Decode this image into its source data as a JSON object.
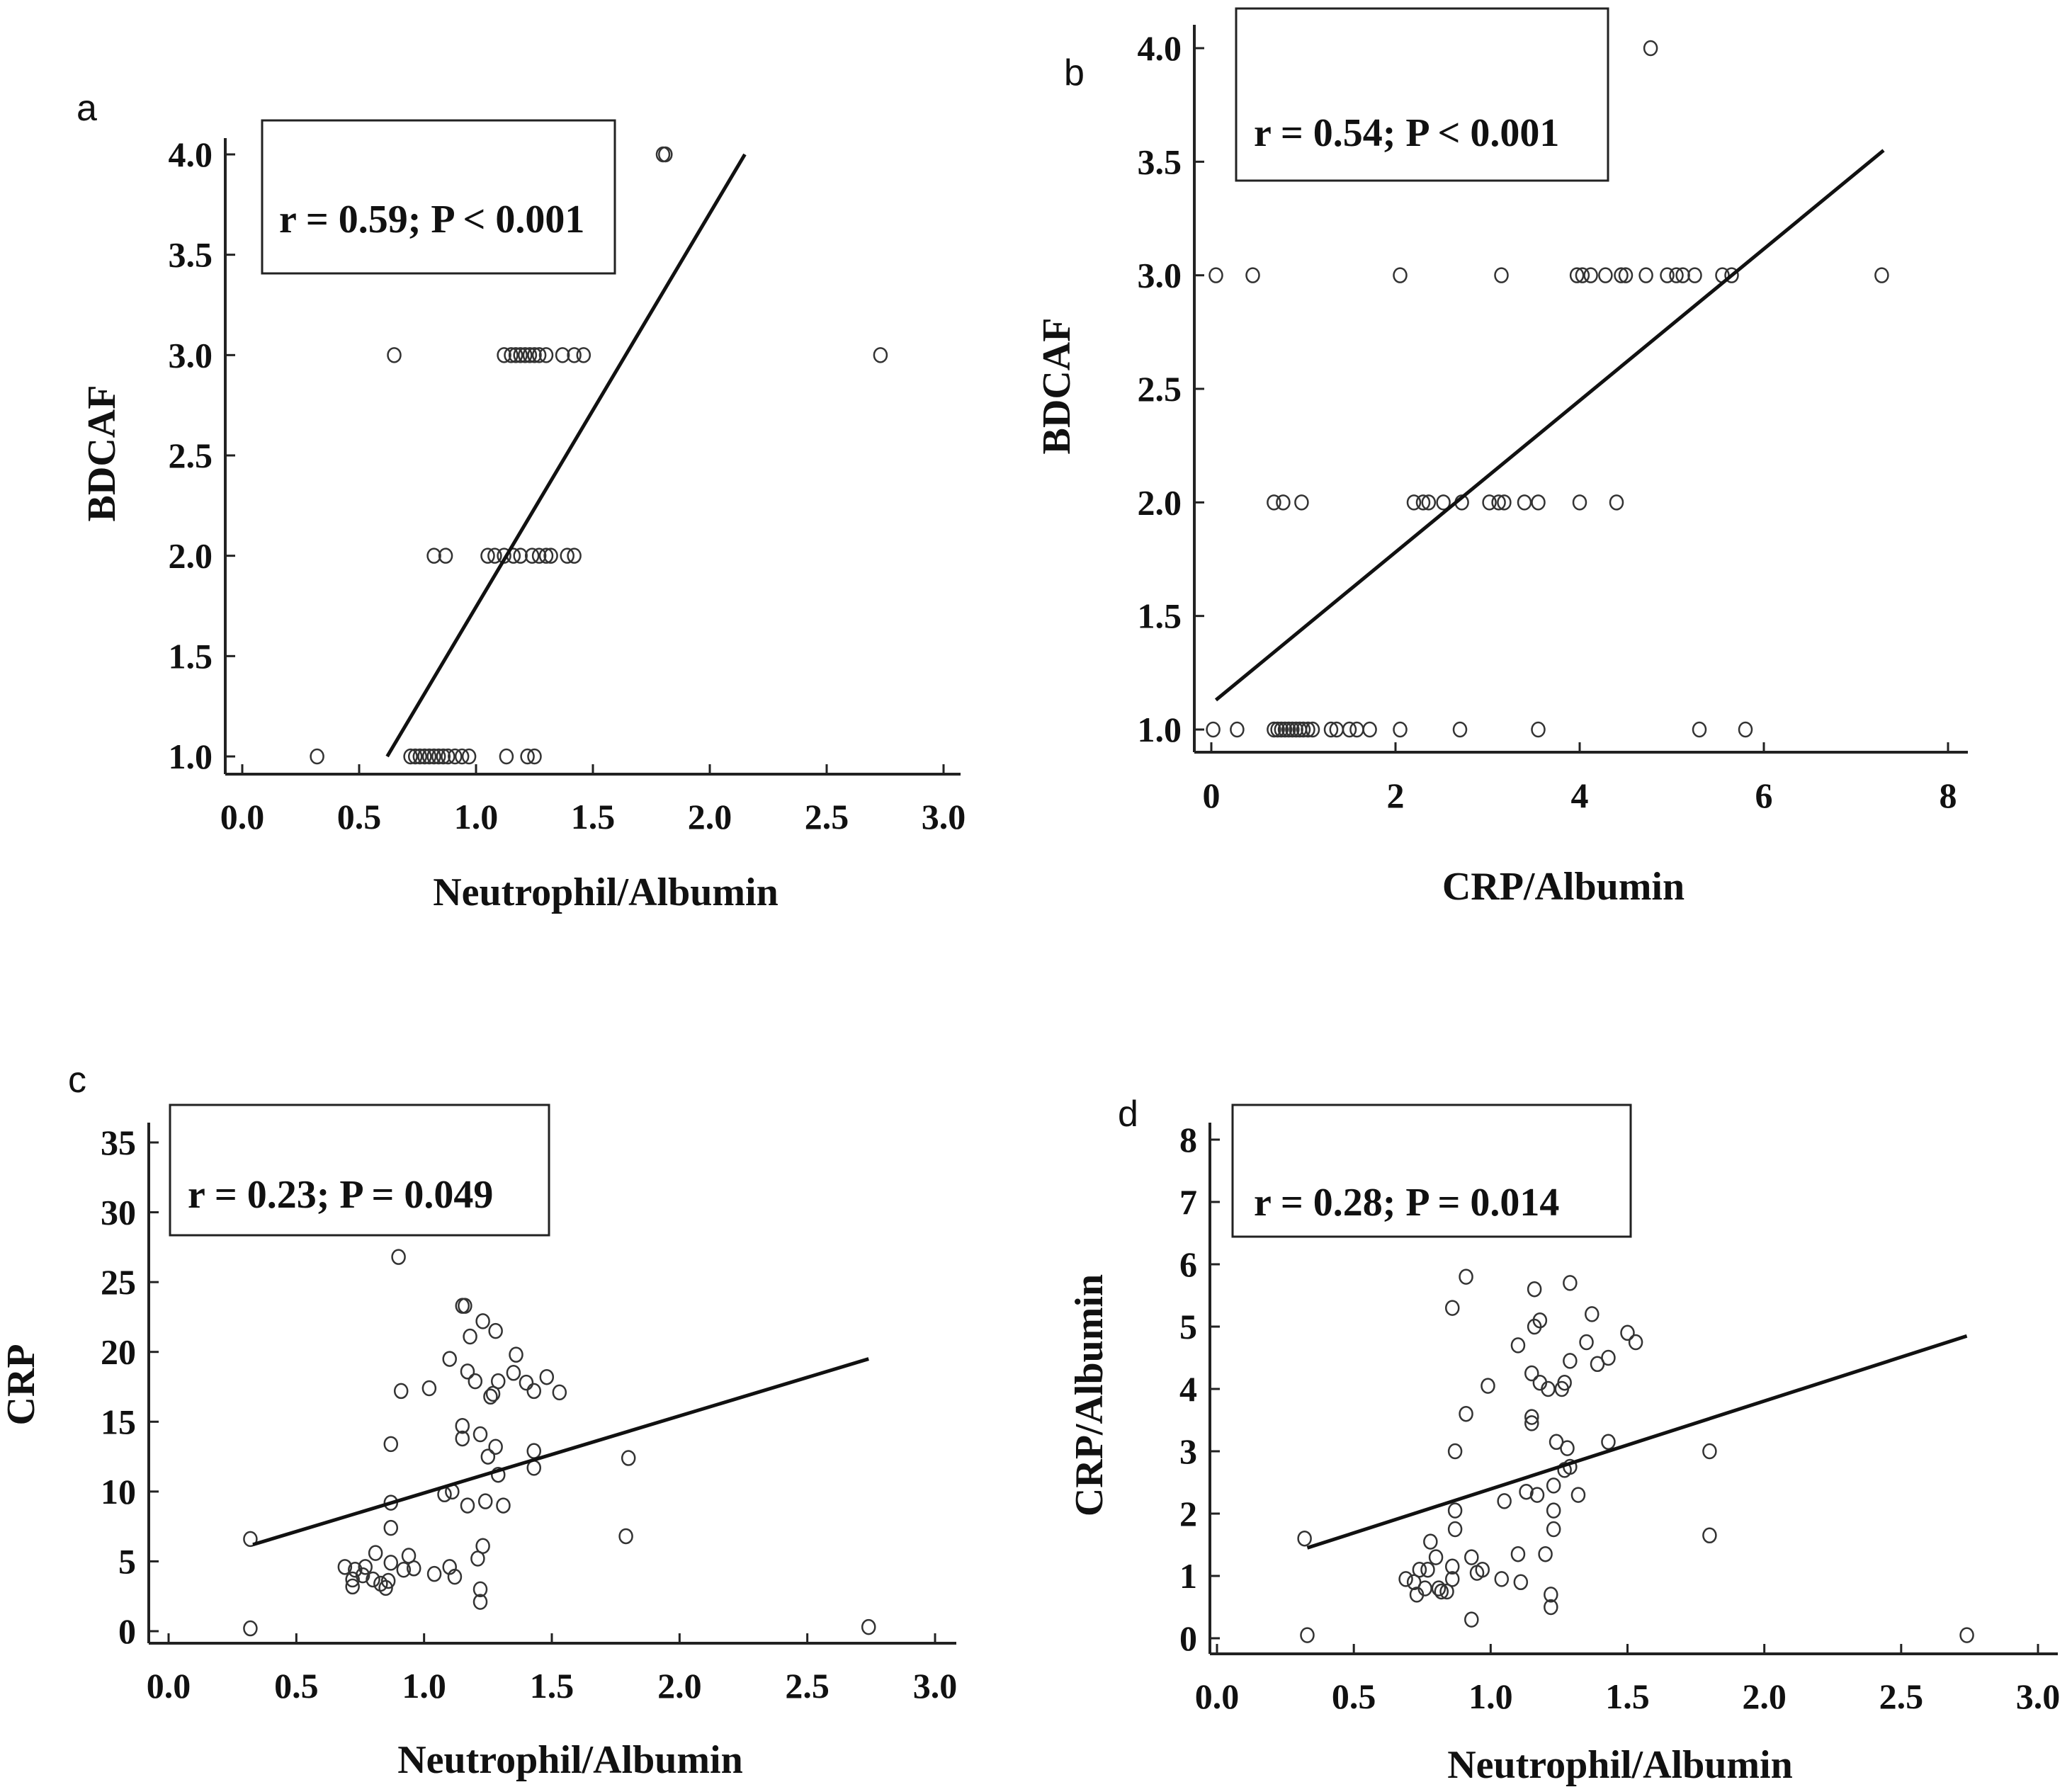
{
  "chart_data": [
    {
      "type": "scatter",
      "panel_label": "a",
      "xlabel": "Neutrophil/Albumin",
      "ylabel": "BDCAF",
      "annotation": "r = 0.59; P < 0.001",
      "x_ticks": [
        "0.0",
        "0.5",
        "1.0",
        "1.5",
        "2.0",
        "2.5",
        "3.0"
      ],
      "y_ticks": [
        "1.0",
        "1.5",
        "2.0",
        "2.5",
        "3.0",
        "3.5",
        "4.0"
      ],
      "xlim": [
        0,
        3
      ],
      "ylim": [
        1,
        4
      ],
      "regression_line": {
        "x": [
          0.62,
          2.15
        ],
        "y": [
          1.0,
          4.0
        ]
      },
      "points": [
        {
          "x": 0.32,
          "y": 1
        },
        {
          "x": 0.72,
          "y": 1
        },
        {
          "x": 0.74,
          "y": 1
        },
        {
          "x": 0.76,
          "y": 1
        },
        {
          "x": 0.78,
          "y": 1
        },
        {
          "x": 0.8,
          "y": 1
        },
        {
          "x": 0.82,
          "y": 1
        },
        {
          "x": 0.84,
          "y": 1
        },
        {
          "x": 0.86,
          "y": 1
        },
        {
          "x": 0.88,
          "y": 1
        },
        {
          "x": 0.91,
          "y": 1
        },
        {
          "x": 0.94,
          "y": 1
        },
        {
          "x": 0.97,
          "y": 1
        },
        {
          "x": 1.13,
          "y": 1
        },
        {
          "x": 1.22,
          "y": 1
        },
        {
          "x": 1.25,
          "y": 1
        },
        {
          "x": 0.82,
          "y": 2
        },
        {
          "x": 0.87,
          "y": 2
        },
        {
          "x": 1.05,
          "y": 2
        },
        {
          "x": 1.08,
          "y": 2
        },
        {
          "x": 1.12,
          "y": 2
        },
        {
          "x": 1.16,
          "y": 2
        },
        {
          "x": 1.19,
          "y": 2
        },
        {
          "x": 1.24,
          "y": 2
        },
        {
          "x": 1.27,
          "y": 2
        },
        {
          "x": 1.3,
          "y": 2
        },
        {
          "x": 1.32,
          "y": 2
        },
        {
          "x": 1.39,
          "y": 2
        },
        {
          "x": 1.42,
          "y": 2
        },
        {
          "x": 0.65,
          "y": 3
        },
        {
          "x": 1.12,
          "y": 3
        },
        {
          "x": 1.15,
          "y": 3
        },
        {
          "x": 1.17,
          "y": 3
        },
        {
          "x": 1.19,
          "y": 3
        },
        {
          "x": 1.21,
          "y": 3
        },
        {
          "x": 1.23,
          "y": 3
        },
        {
          "x": 1.25,
          "y": 3
        },
        {
          "x": 1.27,
          "y": 3
        },
        {
          "x": 1.3,
          "y": 3
        },
        {
          "x": 1.37,
          "y": 3
        },
        {
          "x": 1.42,
          "y": 3
        },
        {
          "x": 1.46,
          "y": 3
        },
        {
          "x": 2.73,
          "y": 3
        },
        {
          "x": 1.8,
          "y": 4
        },
        {
          "x": 1.81,
          "y": 4
        }
      ]
    },
    {
      "type": "scatter",
      "panel_label": "b",
      "xlabel": "CRP/Albumin",
      "ylabel": "BDCAF",
      "annotation": "r = 0.54; P < 0.001",
      "x_ticks": [
        "0",
        "2",
        "4",
        "6",
        "8"
      ],
      "y_ticks": [
        "1.0",
        "1.5",
        "2.0",
        "2.5",
        "3.0",
        "3.5",
        "4.0"
      ],
      "xlim": [
        0,
        8
      ],
      "ylim": [
        1,
        4
      ],
      "regression_line": {
        "x": [
          0.05,
          7.3
        ],
        "y": [
          1.13,
          3.55
        ]
      },
      "points": [
        {
          "x": 0.02,
          "y": 1
        },
        {
          "x": 0.28,
          "y": 1
        },
        {
          "x": 0.68,
          "y": 1
        },
        {
          "x": 0.72,
          "y": 1
        },
        {
          "x": 0.76,
          "y": 1
        },
        {
          "x": 0.8,
          "y": 1
        },
        {
          "x": 0.84,
          "y": 1
        },
        {
          "x": 0.88,
          "y": 1
        },
        {
          "x": 0.92,
          "y": 1
        },
        {
          "x": 0.96,
          "y": 1
        },
        {
          "x": 1.0,
          "y": 1
        },
        {
          "x": 1.05,
          "y": 1
        },
        {
          "x": 1.1,
          "y": 1
        },
        {
          "x": 1.3,
          "y": 1
        },
        {
          "x": 1.36,
          "y": 1
        },
        {
          "x": 1.5,
          "y": 1
        },
        {
          "x": 1.58,
          "y": 1
        },
        {
          "x": 1.72,
          "y": 1
        },
        {
          "x": 2.05,
          "y": 1
        },
        {
          "x": 2.7,
          "y": 1
        },
        {
          "x": 3.55,
          "y": 1
        },
        {
          "x": 5.3,
          "y": 1
        },
        {
          "x": 5.8,
          "y": 1
        },
        {
          "x": 0.68,
          "y": 2
        },
        {
          "x": 0.78,
          "y": 2
        },
        {
          "x": 0.98,
          "y": 2
        },
        {
          "x": 2.2,
          "y": 2
        },
        {
          "x": 2.3,
          "y": 2
        },
        {
          "x": 2.36,
          "y": 2
        },
        {
          "x": 2.52,
          "y": 2
        },
        {
          "x": 2.72,
          "y": 2
        },
        {
          "x": 3.02,
          "y": 2
        },
        {
          "x": 3.12,
          "y": 2
        },
        {
          "x": 3.18,
          "y": 2
        },
        {
          "x": 3.4,
          "y": 2
        },
        {
          "x": 3.55,
          "y": 2
        },
        {
          "x": 4.0,
          "y": 2
        },
        {
          "x": 4.4,
          "y": 2
        },
        {
          "x": 0.05,
          "y": 3
        },
        {
          "x": 0.45,
          "y": 3
        },
        {
          "x": 2.05,
          "y": 3
        },
        {
          "x": 3.15,
          "y": 3
        },
        {
          "x": 3.97,
          "y": 3
        },
        {
          "x": 4.03,
          "y": 3
        },
        {
          "x": 4.12,
          "y": 3
        },
        {
          "x": 4.28,
          "y": 3
        },
        {
          "x": 4.45,
          "y": 3
        },
        {
          "x": 4.5,
          "y": 3
        },
        {
          "x": 4.72,
          "y": 3
        },
        {
          "x": 4.95,
          "y": 3
        },
        {
          "x": 5.05,
          "y": 3
        },
        {
          "x": 5.12,
          "y": 3
        },
        {
          "x": 5.25,
          "y": 3
        },
        {
          "x": 5.55,
          "y": 3
        },
        {
          "x": 5.65,
          "y": 3
        },
        {
          "x": 7.28,
          "y": 3
        },
        {
          "x": 4.77,
          "y": 4
        }
      ]
    },
    {
      "type": "scatter",
      "panel_label": "c",
      "xlabel": "Neutrophil/Albumin",
      "ylabel": "CRP",
      "annotation": "r = 0.23; P = 0.049",
      "x_ticks": [
        "0.0",
        "0.5",
        "1.0",
        "1.5",
        "2.0",
        "2.5",
        "3.0"
      ],
      "y_ticks": [
        "0",
        "5",
        "10",
        "15",
        "20",
        "25",
        "30",
        "35"
      ],
      "xlim": [
        0,
        3
      ],
      "ylim": [
        0,
        35
      ],
      "regression_line": {
        "x": [
          0.33,
          2.74
        ],
        "y": [
          6.2,
          19.5
        ]
      },
      "points": [
        {
          "x": 0.32,
          "y": 6.6
        },
        {
          "x": 0.32,
          "y": 0.2
        },
        {
          "x": 2.74,
          "y": 0.3
        },
        {
          "x": 0.9,
          "y": 26.8
        },
        {
          "x": 1.15,
          "y": 23.3
        },
        {
          "x": 1.16,
          "y": 23.3
        },
        {
          "x": 1.23,
          "y": 22.2
        },
        {
          "x": 1.28,
          "y": 21.5
        },
        {
          "x": 1.18,
          "y": 21.1
        },
        {
          "x": 1.1,
          "y": 19.5
        },
        {
          "x": 1.36,
          "y": 19.8
        },
        {
          "x": 1.17,
          "y": 18.6
        },
        {
          "x": 1.35,
          "y": 18.5
        },
        {
          "x": 1.48,
          "y": 18.2
        },
        {
          "x": 1.2,
          "y": 17.9
        },
        {
          "x": 1.29,
          "y": 17.9
        },
        {
          "x": 1.4,
          "y": 17.8
        },
        {
          "x": 1.02,
          "y": 17.4
        },
        {
          "x": 0.91,
          "y": 17.2
        },
        {
          "x": 1.27,
          "y": 17.0
        },
        {
          "x": 1.43,
          "y": 17.2
        },
        {
          "x": 1.53,
          "y": 17.1
        },
        {
          "x": 1.26,
          "y": 16.8
        },
        {
          "x": 1.15,
          "y": 14.7
        },
        {
          "x": 1.15,
          "y": 13.8
        },
        {
          "x": 1.22,
          "y": 14.1
        },
        {
          "x": 0.87,
          "y": 13.4
        },
        {
          "x": 1.28,
          "y": 13.2
        },
        {
          "x": 1.25,
          "y": 12.5
        },
        {
          "x": 1.43,
          "y": 12.9
        },
        {
          "x": 1.8,
          "y": 12.4
        },
        {
          "x": 1.43,
          "y": 11.7
        },
        {
          "x": 1.29,
          "y": 11.2
        },
        {
          "x": 1.11,
          "y": 10.0
        },
        {
          "x": 1.08,
          "y": 9.8
        },
        {
          "x": 0.87,
          "y": 9.2
        },
        {
          "x": 1.17,
          "y": 9.0
        },
        {
          "x": 1.24,
          "y": 9.3
        },
        {
          "x": 1.31,
          "y": 9.0
        },
        {
          "x": 0.87,
          "y": 7.4
        },
        {
          "x": 1.79,
          "y": 6.8
        },
        {
          "x": 1.23,
          "y": 6.1
        },
        {
          "x": 0.81,
          "y": 5.6
        },
        {
          "x": 0.94,
          "y": 5.4
        },
        {
          "x": 1.21,
          "y": 5.2
        },
        {
          "x": 0.87,
          "y": 4.9
        },
        {
          "x": 0.69,
          "y": 4.6
        },
        {
          "x": 0.73,
          "y": 4.4
        },
        {
          "x": 0.77,
          "y": 4.6
        },
        {
          "x": 0.92,
          "y": 4.4
        },
        {
          "x": 0.96,
          "y": 4.5
        },
        {
          "x": 1.1,
          "y": 4.6
        },
        {
          "x": 0.72,
          "y": 3.7
        },
        {
          "x": 0.76,
          "y": 4.0
        },
        {
          "x": 0.8,
          "y": 3.7
        },
        {
          "x": 0.83,
          "y": 3.4
        },
        {
          "x": 0.86,
          "y": 3.6
        },
        {
          "x": 1.04,
          "y": 4.1
        },
        {
          "x": 1.12,
          "y": 3.9
        },
        {
          "x": 0.72,
          "y": 3.2
        },
        {
          "x": 0.85,
          "y": 3.1
        },
        {
          "x": 1.22,
          "y": 3.0
        },
        {
          "x": 1.22,
          "y": 2.1
        }
      ]
    },
    {
      "type": "scatter",
      "panel_label": "d",
      "xlabel": "Neutrophil/Albumin",
      "ylabel": "CRP/Albumin",
      "annotation": "r = 0.28; P = 0.014",
      "x_ticks": [
        "0.0",
        "0.5",
        "1.0",
        "1.5",
        "2.0",
        "2.5",
        "3.0"
      ],
      "y_ticks": [
        "0",
        "1",
        "2",
        "3",
        "4",
        "5",
        "6",
        "7",
        "8"
      ],
      "xlim": [
        0,
        3
      ],
      "ylim": [
        0,
        8
      ],
      "regression_line": {
        "x": [
          0.33,
          2.74
        ],
        "y": [
          1.45,
          4.85
        ]
      },
      "points": [
        {
          "x": 0.32,
          "y": 1.6
        },
        {
          "x": 0.33,
          "y": 0.05
        },
        {
          "x": 2.74,
          "y": 0.05
        },
        {
          "x": 0.91,
          "y": 5.8
        },
        {
          "x": 1.29,
          "y": 5.7
        },
        {
          "x": 1.16,
          "y": 5.6
        },
        {
          "x": 0.86,
          "y": 5.3
        },
        {
          "x": 1.37,
          "y": 5.2
        },
        {
          "x": 1.18,
          "y": 5.1
        },
        {
          "x": 1.16,
          "y": 5.0
        },
        {
          "x": 1.5,
          "y": 4.9
        },
        {
          "x": 1.35,
          "y": 4.75
        },
        {
          "x": 1.53,
          "y": 4.75
        },
        {
          "x": 1.1,
          "y": 4.7
        },
        {
          "x": 1.29,
          "y": 4.45
        },
        {
          "x": 1.43,
          "y": 4.5
        },
        {
          "x": 1.39,
          "y": 4.4
        },
        {
          "x": 1.15,
          "y": 4.25
        },
        {
          "x": 1.18,
          "y": 4.1
        },
        {
          "x": 1.27,
          "y": 4.1
        },
        {
          "x": 1.21,
          "y": 4.0
        },
        {
          "x": 1.26,
          "y": 4.0
        },
        {
          "x": 0.99,
          "y": 4.05
        },
        {
          "x": 0.91,
          "y": 3.6
        },
        {
          "x": 1.15,
          "y": 3.55
        },
        {
          "x": 1.15,
          "y": 3.45
        },
        {
          "x": 1.43,
          "y": 3.15
        },
        {
          "x": 1.24,
          "y": 3.15
        },
        {
          "x": 1.28,
          "y": 3.05
        },
        {
          "x": 0.87,
          "y": 3.0
        },
        {
          "x": 1.8,
          "y": 3.0
        },
        {
          "x": 1.29,
          "y": 2.75
        },
        {
          "x": 1.27,
          "y": 2.7
        },
        {
          "x": 1.23,
          "y": 2.45
        },
        {
          "x": 1.13,
          "y": 2.35
        },
        {
          "x": 1.17,
          "y": 2.3
        },
        {
          "x": 1.32,
          "y": 2.3
        },
        {
          "x": 1.05,
          "y": 2.2
        },
        {
          "x": 0.87,
          "y": 2.05
        },
        {
          "x": 1.23,
          "y": 2.05
        },
        {
          "x": 0.87,
          "y": 1.75
        },
        {
          "x": 1.23,
          "y": 1.75
        },
        {
          "x": 1.8,
          "y": 1.65
        },
        {
          "x": 0.78,
          "y": 1.55
        },
        {
          "x": 0.8,
          "y": 1.3
        },
        {
          "x": 0.93,
          "y": 1.3
        },
        {
          "x": 1.2,
          "y": 1.35
        },
        {
          "x": 1.1,
          "y": 1.35
        },
        {
          "x": 0.86,
          "y": 1.15
        },
        {
          "x": 0.74,
          "y": 1.1
        },
        {
          "x": 0.77,
          "y": 1.1
        },
        {
          "x": 0.95,
          "y": 1.05
        },
        {
          "x": 0.97,
          "y": 1.1
        },
        {
          "x": 0.69,
          "y": 0.95
        },
        {
          "x": 0.72,
          "y": 0.9
        },
        {
          "x": 0.86,
          "y": 0.95
        },
        {
          "x": 1.04,
          "y": 0.95
        },
        {
          "x": 1.11,
          "y": 0.9
        },
        {
          "x": 0.76,
          "y": 0.8
        },
        {
          "x": 0.81,
          "y": 0.8
        },
        {
          "x": 0.73,
          "y": 0.7
        },
        {
          "x": 0.84,
          "y": 0.75
        },
        {
          "x": 0.82,
          "y": 0.75
        },
        {
          "x": 1.22,
          "y": 0.7
        },
        {
          "x": 1.22,
          "y": 0.5
        },
        {
          "x": 0.93,
          "y": 0.3
        }
      ]
    }
  ]
}
